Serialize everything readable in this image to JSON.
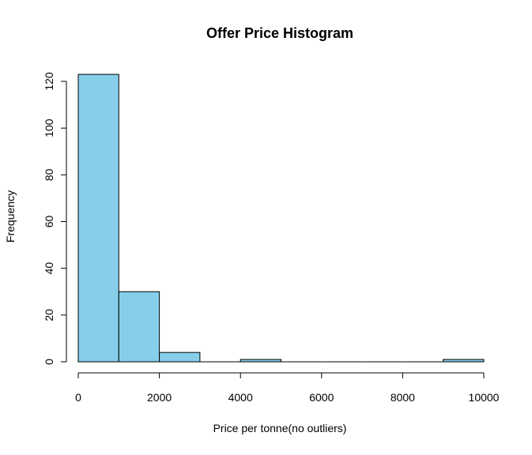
{
  "chart_data": {
    "type": "bar",
    "title": "Offer Price Histogram",
    "xlabel": "Price per tonne(no outliers)",
    "ylabel": "Frequency",
    "bins": [
      {
        "start": 0,
        "end": 1000,
        "count": 123
      },
      {
        "start": 1000,
        "end": 2000,
        "count": 30
      },
      {
        "start": 2000,
        "end": 3000,
        "count": 4
      },
      {
        "start": 3000,
        "end": 4000,
        "count": 0
      },
      {
        "start": 4000,
        "end": 5000,
        "count": 1
      },
      {
        "start": 5000,
        "end": 6000,
        "count": 0
      },
      {
        "start": 6000,
        "end": 7000,
        "count": 0
      },
      {
        "start": 7000,
        "end": 8000,
        "count": 0
      },
      {
        "start": 8000,
        "end": 9000,
        "count": 0
      },
      {
        "start": 9000,
        "end": 10000,
        "count": 1
      }
    ],
    "xlim": [
      0,
      10000
    ],
    "ylim": [
      0,
      120
    ],
    "x_ticks": [
      0,
      2000,
      4000,
      6000,
      8000,
      10000
    ],
    "y_ticks": [
      0,
      20,
      40,
      60,
      80,
      100,
      120
    ],
    "bar_color": "#87ceeb",
    "bar_stroke": "#000000",
    "grid": false,
    "legend": "none"
  }
}
